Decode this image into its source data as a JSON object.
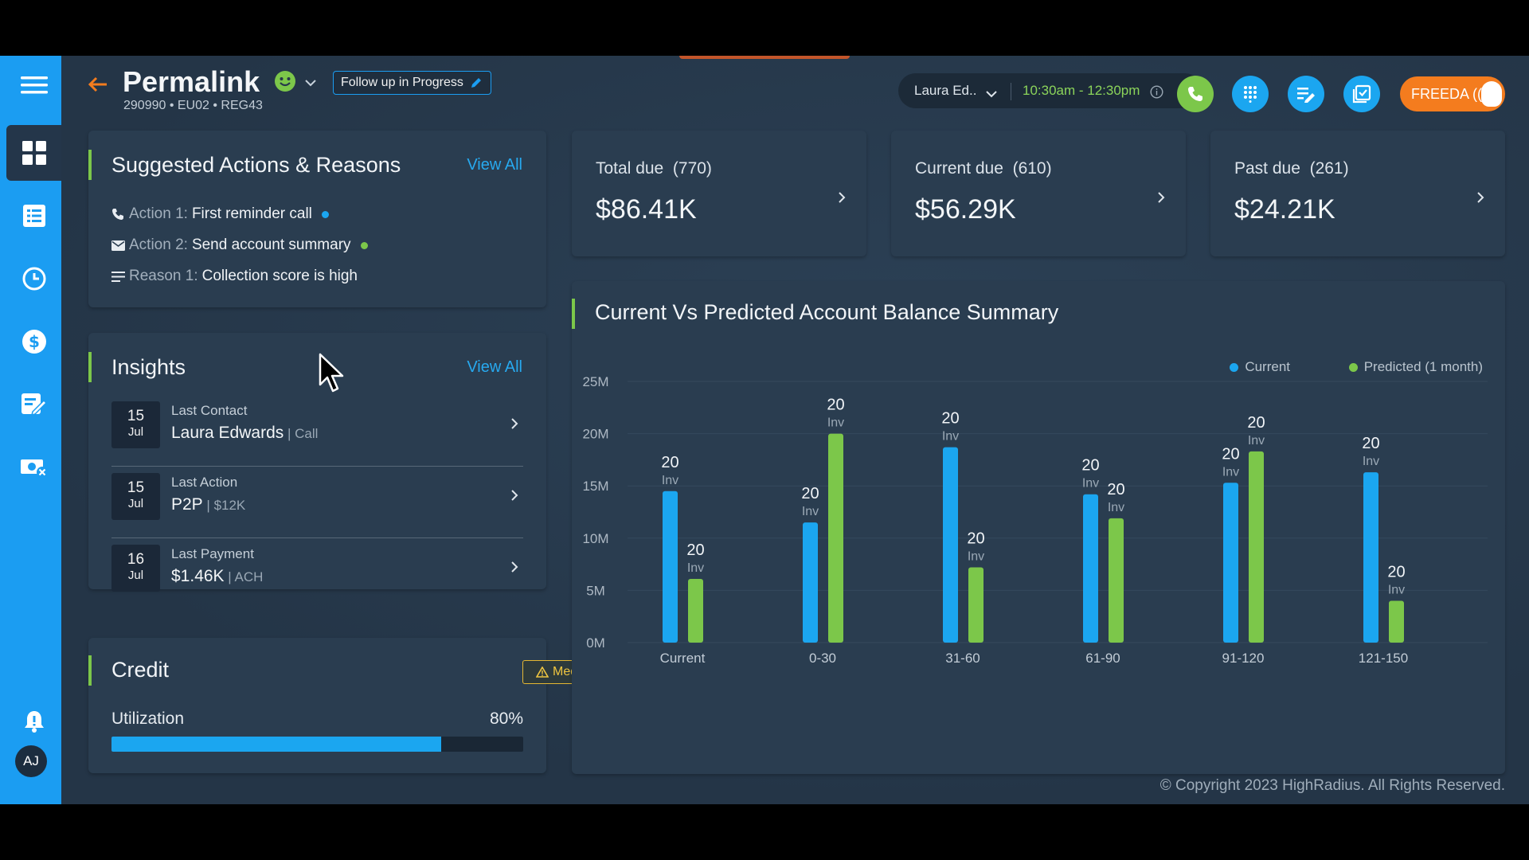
{
  "header": {
    "title": "Permalink",
    "subtitle": "290990 • EU02 • REG43",
    "status_label": "Follow up in Progress",
    "agent_name": "Laura Ed..",
    "time_window": "10:30am - 12:30pm",
    "freeda_label": "FREEDA ((",
    "avatar_initials": "AJ"
  },
  "suggested": {
    "title": "Suggested Actions & Reasons",
    "view_all": "View All",
    "items": [
      {
        "label": "Action 1:",
        "text": "First reminder call",
        "icon": "phone-icon",
        "dot_color": "#1ba6f0"
      },
      {
        "label": "Action 2:",
        "text": "Send account summary",
        "icon": "mail-icon",
        "dot_color": "#7cc74a"
      },
      {
        "label": "Reason 1:",
        "text": "Collection score is high",
        "icon": "list-icon"
      }
    ]
  },
  "insights": {
    "title": "Insights",
    "view_all": "View All",
    "items": [
      {
        "day": "15",
        "month": "Jul",
        "label": "Last Contact",
        "value": "Laura Edwards",
        "sub": " | Call"
      },
      {
        "day": "15",
        "month": "Jul",
        "label": "Last Action",
        "value": "P2P",
        "sub": " | $12K"
      },
      {
        "day": "16",
        "month": "Jul",
        "label": "Last Payment",
        "value": "$1.46K",
        "sub": " | ACH"
      }
    ]
  },
  "credit": {
    "title": "Credit",
    "risk_badge": "Medium",
    "utilization_label": "Utilization",
    "utilization_pct": "80%",
    "utilization_value": 0.8
  },
  "dues": [
    {
      "label": "Total due",
      "count": "(770)",
      "amount": "$86.41K"
    },
    {
      "label": "Current due",
      "count": "(610)",
      "amount": "$56.29K"
    },
    {
      "label": "Past due",
      "count": "(261)",
      "amount": "$24.21K"
    }
  ],
  "chart_card": {
    "title": "Current Vs Predicted Account Balance Summary"
  },
  "chart_data": {
    "type": "bar",
    "title": "Current Vs Predicted Account Balance Summary",
    "categories": [
      "Current",
      "0-30",
      "31-60",
      "61-90",
      "91-120",
      "121-150"
    ],
    "series": [
      {
        "name": "Current",
        "color": "#1ba6f0",
        "values": [
          14.5,
          11.5,
          18.7,
          14.2,
          15.3,
          16.3
        ],
        "labels": [
          "20",
          "20",
          "20",
          "20",
          "20",
          "20"
        ]
      },
      {
        "name": "Predicted (1 month)",
        "color": "#7cc74a",
        "values": [
          6.1,
          20.0,
          7.2,
          11.9,
          18.3,
          4.0
        ],
        "labels": [
          "20",
          "20",
          "20",
          "20",
          "20",
          "20"
        ]
      }
    ],
    "label_suffix": "Inv",
    "y_ticks": [
      "0M",
      "5M",
      "10M",
      "15M",
      "20M",
      "25M"
    ],
    "ylim": [
      0,
      25
    ],
    "grid": true,
    "legend_position": "top-right"
  },
  "footer": {
    "copyright": "© Copyright 2023 HighRadius. All Rights Reserved."
  },
  "colors": {
    "accent_blue": "#1ba6f0",
    "accent_green": "#7cc74a",
    "accent_orange": "#f47c1e",
    "badge_yellow": "#e4b732"
  }
}
